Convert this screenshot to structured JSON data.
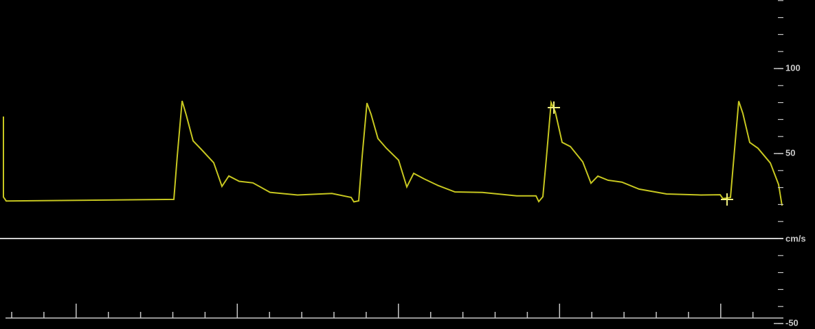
{
  "scale": {
    "unit": "cm/s",
    "labels": [
      100,
      50,
      -50
    ]
  }
}
